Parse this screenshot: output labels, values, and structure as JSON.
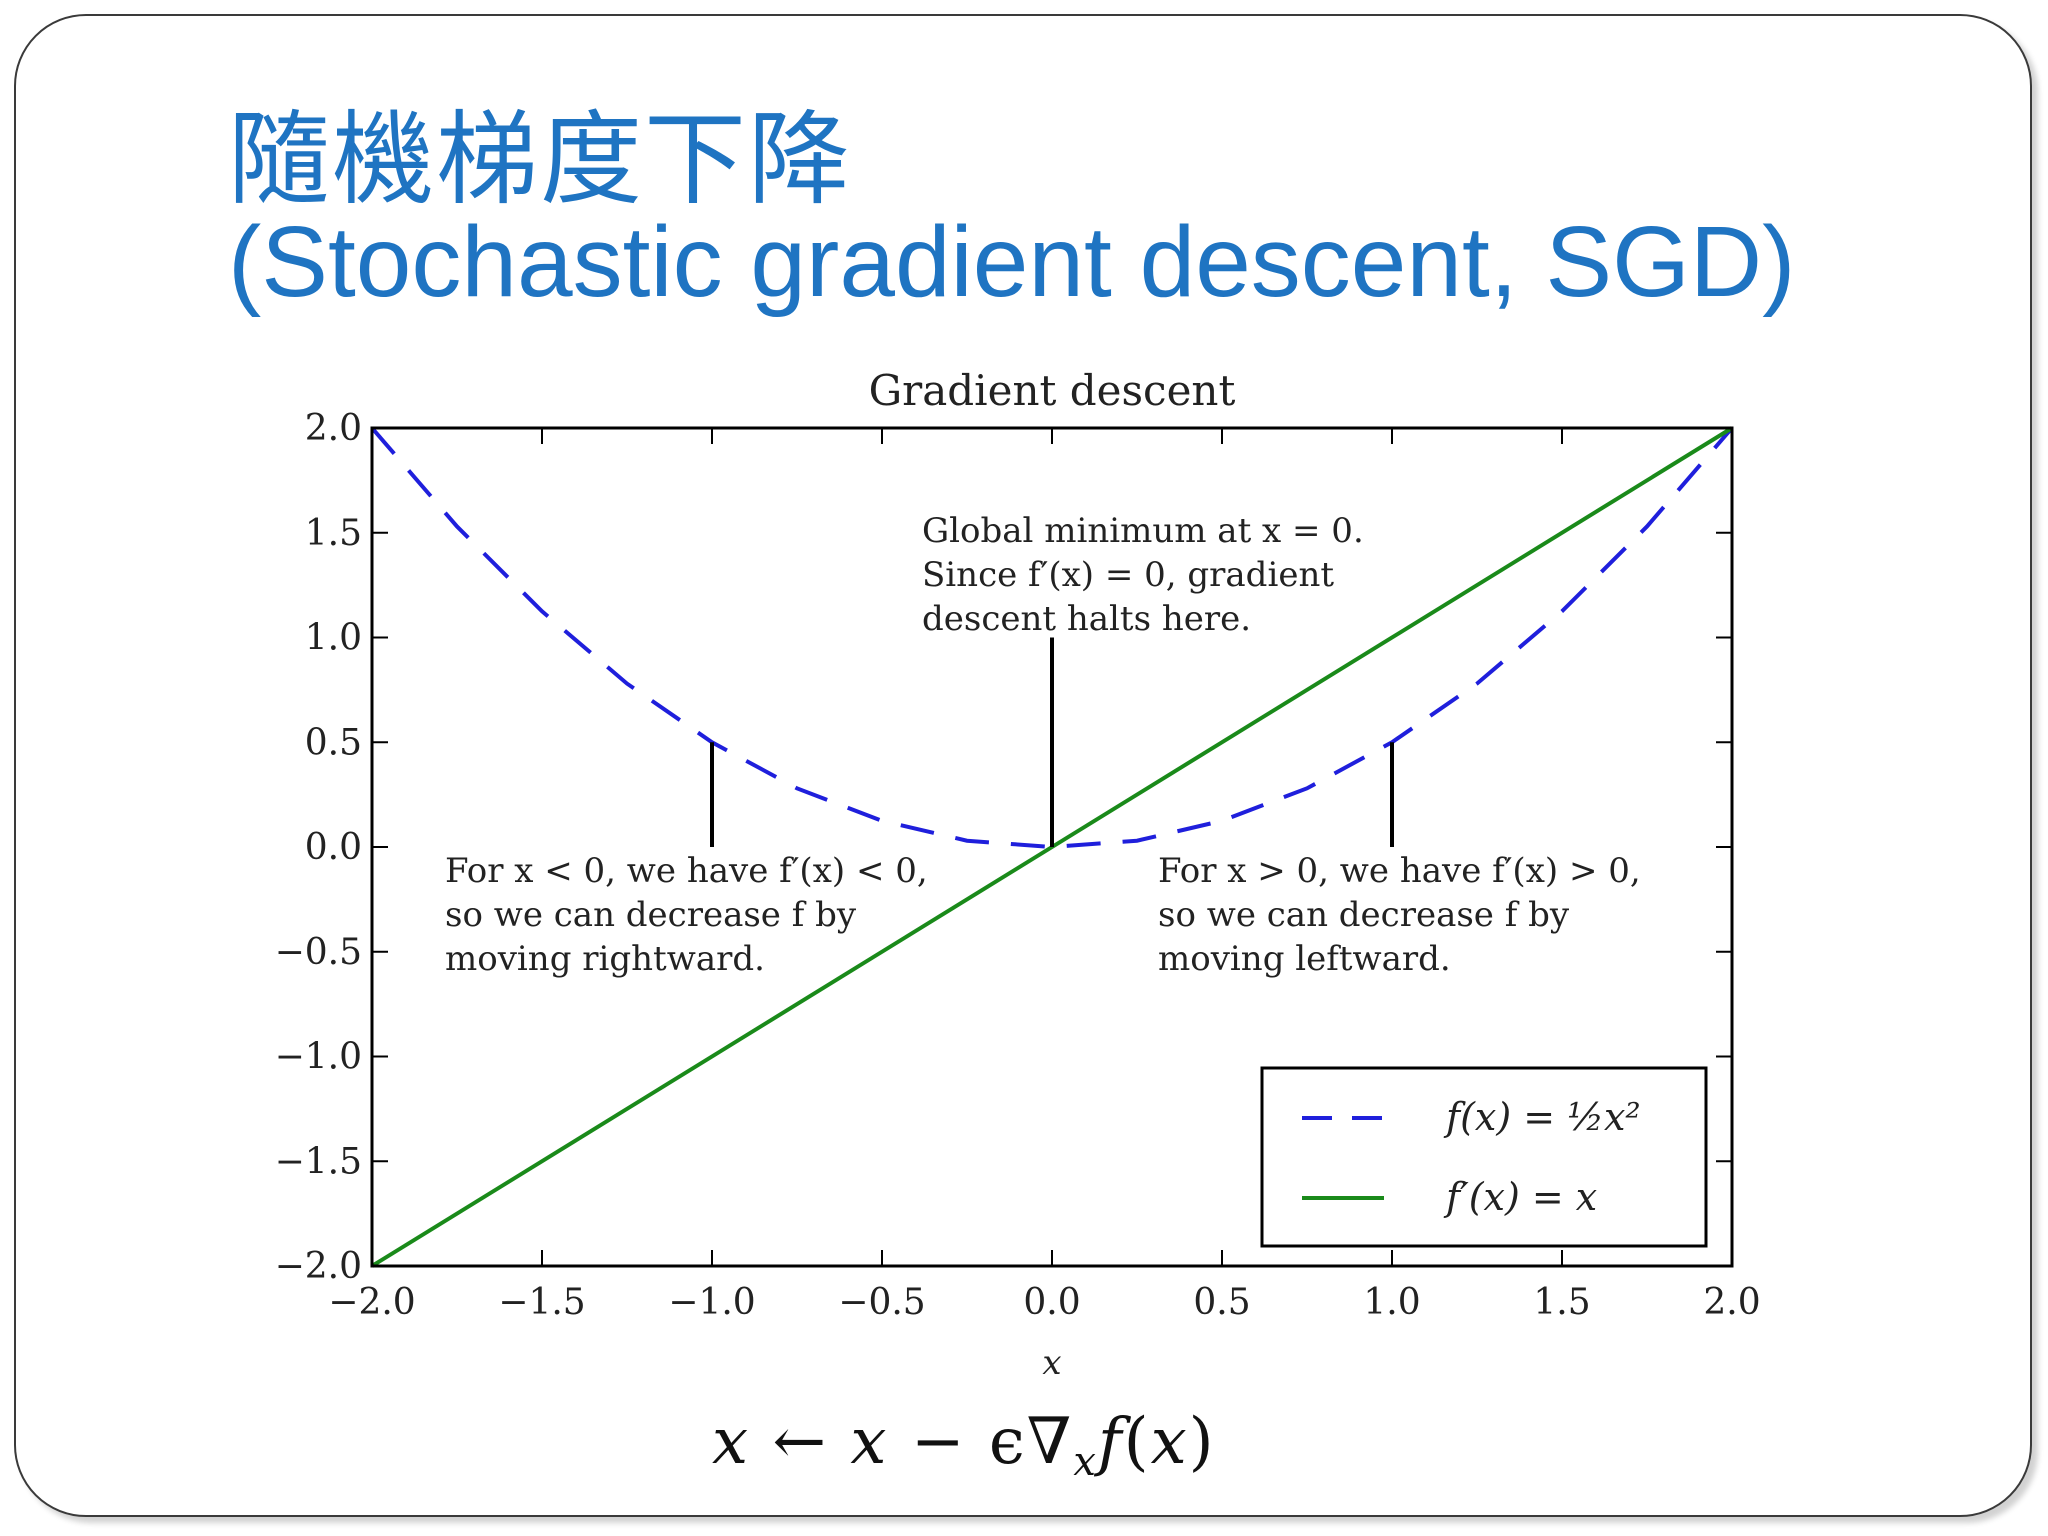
{
  "slide": {
    "title_zh": "隨機梯度下降",
    "title_en": "(Stochastic gradient descent, SGD)"
  },
  "colors": {
    "title": "#1f74c2",
    "function_curve": "#1f1fdc",
    "derivative_line": "#1a8a1a",
    "axes": "#000000"
  },
  "chart_data": {
    "type": "line",
    "title": "Gradient descent",
    "xlabel": "x",
    "ylabel": "",
    "xlim": [
      -2.0,
      2.0
    ],
    "ylim": [
      -2.0,
      2.0
    ],
    "xticks": [
      -2.0,
      -1.5,
      -1.0,
      -0.5,
      0.0,
      0.5,
      1.0,
      1.5,
      2.0
    ],
    "yticks": [
      -2.0,
      -1.5,
      -1.0,
      -0.5,
      0.0,
      0.5,
      1.0,
      1.5,
      2.0
    ],
    "xtick_labels": [
      "−2.0",
      "−1.5",
      "−1.0",
      "−0.5",
      "0.0",
      "0.5",
      "1.0",
      "1.5",
      "2.0"
    ],
    "ytick_labels": [
      "−2.0",
      "−1.5",
      "−1.0",
      "−0.5",
      "0.0",
      "0.5",
      "1.0",
      "1.5",
      "2.0"
    ],
    "grid": false,
    "legend_position": "bottom-right",
    "series": [
      {
        "name": "f(x) = ½x²",
        "style": "dashed",
        "color": "#1f1fdc",
        "x": [
          -2.0,
          -1.75,
          -1.5,
          -1.25,
          -1.0,
          -0.75,
          -0.5,
          -0.25,
          0.0,
          0.25,
          0.5,
          0.75,
          1.0,
          1.25,
          1.5,
          1.75,
          2.0
        ],
        "y": [
          2.0,
          1.53,
          1.125,
          0.78,
          0.5,
          0.28,
          0.125,
          0.03,
          0.0,
          0.03,
          0.125,
          0.28,
          0.5,
          0.78,
          1.125,
          1.53,
          2.0
        ]
      },
      {
        "name": "f′(x) = x",
        "style": "solid",
        "color": "#1a8a1a",
        "x": [
          -2.0,
          2.0
        ],
        "y": [
          -2.0,
          2.0
        ]
      }
    ],
    "annotations": [
      {
        "id": "global-min",
        "lines": [
          "Global minimum at x = 0.",
          "Since f′(x) = 0, gradient",
          "descent halts here."
        ],
        "pointer_x": 0.0,
        "pointer_y_from": 0.0,
        "pointer_y_to": 1.0
      },
      {
        "id": "left-side",
        "lines": [
          "For x < 0, we have f′(x) < 0,",
          "so we can decrease f by",
          "moving rightward."
        ],
        "pointer_x": -1.0,
        "pointer_y_from": 0.5,
        "pointer_y_to": 0.0
      },
      {
        "id": "right-side",
        "lines": [
          "For x > 0, we have f′(x) > 0,",
          "so we can decrease f by",
          "moving leftward."
        ],
        "pointer_x": 1.0,
        "pointer_y_from": 0.5,
        "pointer_y_to": 0.0
      }
    ],
    "legend": {
      "entries": [
        "f(x) = ½x²",
        "f′(x) = x"
      ]
    }
  },
  "formula": {
    "lhs": "x",
    "arrow": "←",
    "x": "x",
    "minus": "−",
    "epsilon_nabla": "ϵ∇",
    "sub": "x",
    "f": "f",
    "open": "(",
    "arg": "x",
    "close": ")"
  }
}
